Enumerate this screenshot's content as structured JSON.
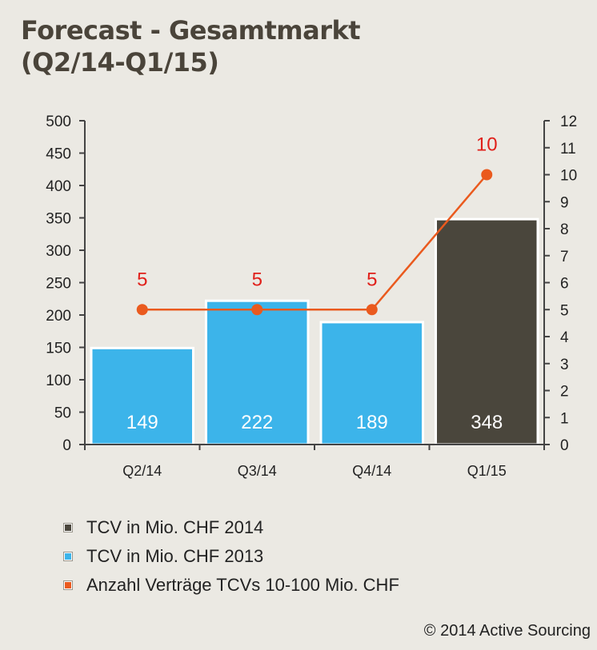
{
  "title": {
    "line1": "Forecast - Gesamtmarkt",
    "line2": "(Q2/14-Q1/15)"
  },
  "colors": {
    "bar_2013": "#3cb4ea",
    "bar_2014": "#4a463c",
    "line": "#ea5a1e",
    "line_label": "#e0201a",
    "axis": "#444444",
    "bar_label": "#ffffff"
  },
  "chart_data": {
    "type": "bar",
    "categories": [
      "Q2/14",
      "Q3/14",
      "Q4/14",
      "Q1/15"
    ],
    "bars": {
      "values": [
        149,
        222,
        189,
        348
      ],
      "series_per_bar": [
        "TCV in Mio. CHF 2013",
        "TCV in Mio. CHF 2013",
        "TCV in Mio. CHF 2013",
        "TCV in Mio. CHF 2014"
      ]
    },
    "line": {
      "name": "Anzahl Verträge TCVs 10-100 Mio. CHF",
      "values": [
        5,
        5,
        5,
        10
      ],
      "axis": "right"
    },
    "ylim_left": [
      0,
      500
    ],
    "yticks_left": [
      0,
      50,
      100,
      150,
      200,
      250,
      300,
      350,
      400,
      450,
      500
    ],
    "ylim_right": [
      0,
      12
    ],
    "yticks_right": [
      0,
      1,
      2,
      3,
      4,
      5,
      6,
      7,
      8,
      9,
      10,
      11,
      12
    ],
    "legend_position": "bottom",
    "grid": false
  },
  "legend": [
    {
      "label": "TCV in Mio. CHF 2014",
      "color": "#4a463c"
    },
    {
      "label": "TCV in Mio. CHF 2013",
      "color": "#3cb4ea"
    },
    {
      "label": "Anzahl Verträge TCVs 10-100 Mio. CHF",
      "color": "#ea5a1e"
    }
  ],
  "copyright": "© 2014 Active Sourcing"
}
